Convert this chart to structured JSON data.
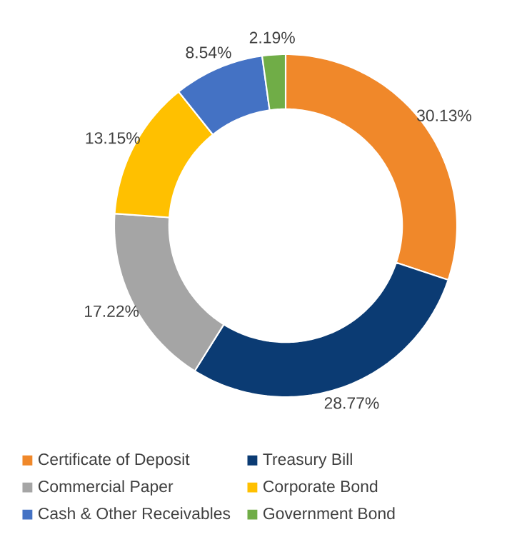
{
  "chart_data": {
    "type": "donut",
    "categories": [
      "Certificate of Deposit",
      "Treasury Bill",
      "Commercial Paper",
      "Corporate Bond",
      "Cash & Other Receivables",
      "Government Bond"
    ],
    "values": [
      30.13,
      28.77,
      17.22,
      13.15,
      8.54,
      2.19
    ],
    "value_labels": [
      "30.13%",
      "28.77%",
      "17.22%",
      "13.15%",
      "8.54%",
      "2.19%"
    ],
    "colors": [
      "#f0882a",
      "#0b3b73",
      "#a5a5a5",
      "#ffc000",
      "#4472c4",
      "#70ad47"
    ],
    "legend": "bottom"
  }
}
